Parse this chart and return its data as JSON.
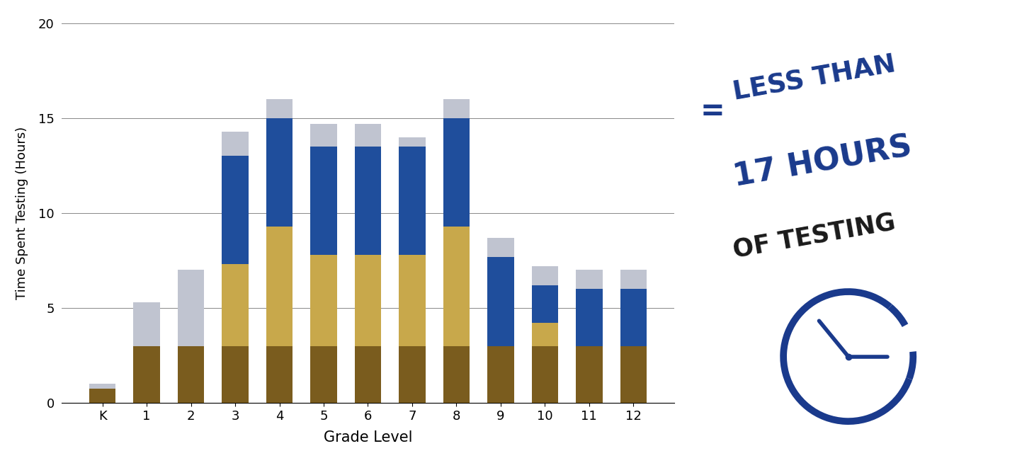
{
  "grades": [
    "K",
    "1",
    "2",
    "3",
    "4",
    "5",
    "6",
    "7",
    "8",
    "9",
    "10",
    "11",
    "12"
  ],
  "brown": [
    0.75,
    3.0,
    3.0,
    3.0,
    3.0,
    3.0,
    3.0,
    3.0,
    3.0,
    3.0,
    3.0,
    3.0,
    3.0
  ],
  "gold": [
    0.0,
    0.0,
    0.0,
    4.3,
    6.3,
    4.8,
    4.8,
    4.8,
    6.3,
    0.0,
    1.2,
    0.0,
    0.0
  ],
  "blue": [
    0.0,
    0.0,
    0.0,
    5.7,
    5.7,
    5.7,
    5.7,
    5.7,
    5.7,
    4.7,
    2.0,
    3.0,
    3.0
  ],
  "gray": [
    0.25,
    2.3,
    4.0,
    1.3,
    1.0,
    1.2,
    1.2,
    0.5,
    1.0,
    1.0,
    1.0,
    1.0,
    1.0
  ],
  "brown_color": "#7a5c1e",
  "gold_color": "#c8a84b",
  "blue_color": "#1f4e9c",
  "gray_color": "#c0c4d0",
  "ylabel": "Time Spent Testing (Hours)",
  "xlabel": "Grade Level",
  "ylim": [
    0,
    20
  ],
  "yticks": [
    0,
    5,
    10,
    15,
    20
  ],
  "annotation_color_blue": "#1a3a8c",
  "annotation_color_dark": "#1a1a1a",
  "bg_color": "#ffffff"
}
